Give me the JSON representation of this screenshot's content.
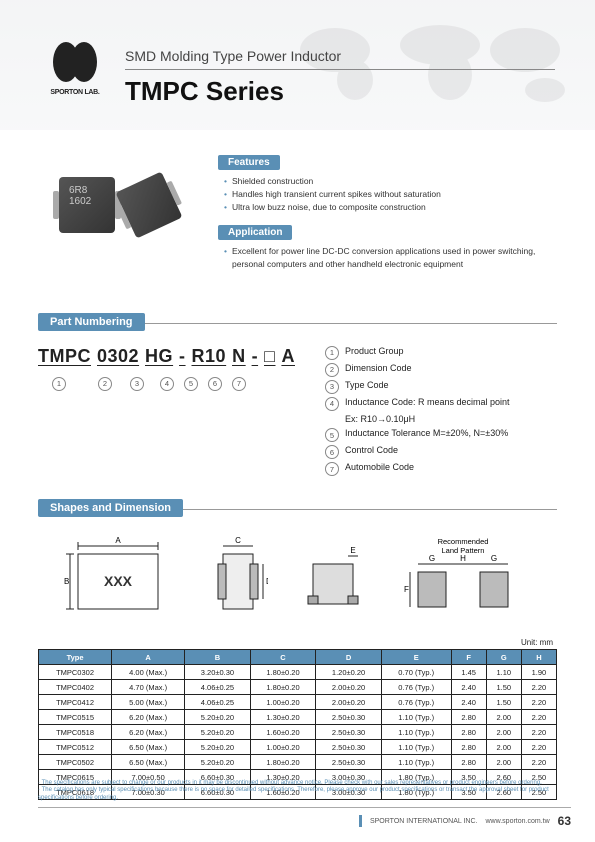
{
  "header": {
    "logo_text": "SPORTON LAB.",
    "subtitle": "SMD Molding Type Power Inductor",
    "title": "TMPC Series"
  },
  "product_image": {
    "chip_line1": "6R8",
    "chip_line2": "1602"
  },
  "features": {
    "badge": "Features",
    "items": [
      "Shielded construction",
      "Handles high transient current spikes without saturation",
      "Ultra low buzz noise, due to composite construction"
    ]
  },
  "application": {
    "badge": "Application",
    "items": [
      "Excellent for power line DC-DC conversion applications used in power switching, personal computers and other handheld electronic equipment"
    ]
  },
  "part_numbering": {
    "badge": "Part Numbering",
    "segments": [
      "TMPC",
      "0302",
      "HG",
      "-",
      "R10",
      "N",
      "-",
      "□",
      "A"
    ],
    "markers": [
      "1",
      "2",
      "3",
      "4",
      "5",
      "6",
      "7"
    ],
    "legend": [
      {
        "n": "1",
        "text": "Product Group"
      },
      {
        "n": "2",
        "text": "Dimension Code"
      },
      {
        "n": "3",
        "text": "Type Code"
      },
      {
        "n": "4",
        "text": "Inductance Code: R means decimal point",
        "sub": "Ex: R10→0.10μH"
      },
      {
        "n": "5",
        "text": "Inductance Tolerance M=±20%, N=±30%"
      },
      {
        "n": "6",
        "text": "Control Code"
      },
      {
        "n": "7",
        "text": "Automobile Code"
      }
    ]
  },
  "shapes": {
    "badge": "Shapes and Dimension",
    "box_label": "XXX",
    "land_pattern_title": "Recommended\nLand Pattern",
    "dim_labels": {
      "A": "A",
      "B": "B",
      "C": "C",
      "D": "D",
      "E": "E",
      "F": "F",
      "G": "G",
      "H": "H"
    }
  },
  "table": {
    "unit": "Unit: mm",
    "columns": [
      "Type",
      "A",
      "B",
      "C",
      "D",
      "E",
      "F",
      "G",
      "H"
    ],
    "rows": [
      [
        "TMPC0302",
        "4.00 (Max.)",
        "3.20±0.30",
        "1.80±0.20",
        "1.20±0.20",
        "0.70 (Typ.)",
        "1.45",
        "1.10",
        "1.90"
      ],
      [
        "TMPC0402",
        "4.70 (Max.)",
        "4.06±0.25",
        "1.80±0.20",
        "2.00±0.20",
        "0.76 (Typ.)",
        "2.40",
        "1.50",
        "2.20"
      ],
      [
        "TMPC0412",
        "5.00 (Max.)",
        "4.06±0.25",
        "1.00±0.20",
        "2.00±0.20",
        "0.76 (Typ.)",
        "2.40",
        "1.50",
        "2.20"
      ],
      [
        "TMPC0515",
        "6.20 (Max.)",
        "5.20±0.20",
        "1.30±0.20",
        "2.50±0.30",
        "1.10 (Typ.)",
        "2.80",
        "2.00",
        "2.20"
      ],
      [
        "TMPC0518",
        "6.20 (Max.)",
        "5.20±0.20",
        "1.60±0.20",
        "2.50±0.30",
        "1.10 (Typ.)",
        "2.80",
        "2.00",
        "2.20"
      ],
      [
        "TMPC0512",
        "6.50 (Max.)",
        "5.20±0.20",
        "1.00±0.20",
        "2.50±0.30",
        "1.10 (Typ.)",
        "2.80",
        "2.00",
        "2.20"
      ],
      [
        "TMPC0502",
        "6.50 (Max.)",
        "5.20±0.20",
        "1.80±0.20",
        "2.50±0.30",
        "1.10 (Typ.)",
        "2.80",
        "2.00",
        "2.20"
      ],
      [
        "TMPC0615",
        "7.00±0.50",
        "6.60±0.30",
        "1.30±0.20",
        "3.00±0.30",
        "1.80 (Typ.)",
        "3.50",
        "2.60",
        "2.50"
      ],
      [
        "TMPC0618",
        "7.00±0.30",
        "6.60±0.30",
        "1.60±0.20",
        "3.00±0.30",
        "1.80 (Typ.)",
        "3.50",
        "2.60",
        "2.50"
      ]
    ]
  },
  "footer": {
    "disclaimer1": "The specifications are subject to change or our products in it may be discontinued without advance notice. Please check with our sales representatives or product engineers before ordering.",
    "disclaimer2": "The catalog has only typical specifications because there is no space for detailed specifications. Therefore, please approve our product specifications or transact the approval sheet for product specifications before ordering.",
    "company": "SPORTON INTERNATIONAL INC.",
    "url": "www.sporton.com.tw",
    "page": "63"
  },
  "styling": {
    "accent_color": "#5a8fb5",
    "header_bg": "#e8eaec",
    "text_color": "#222",
    "table_border": "#222",
    "font_family": "Arial"
  }
}
